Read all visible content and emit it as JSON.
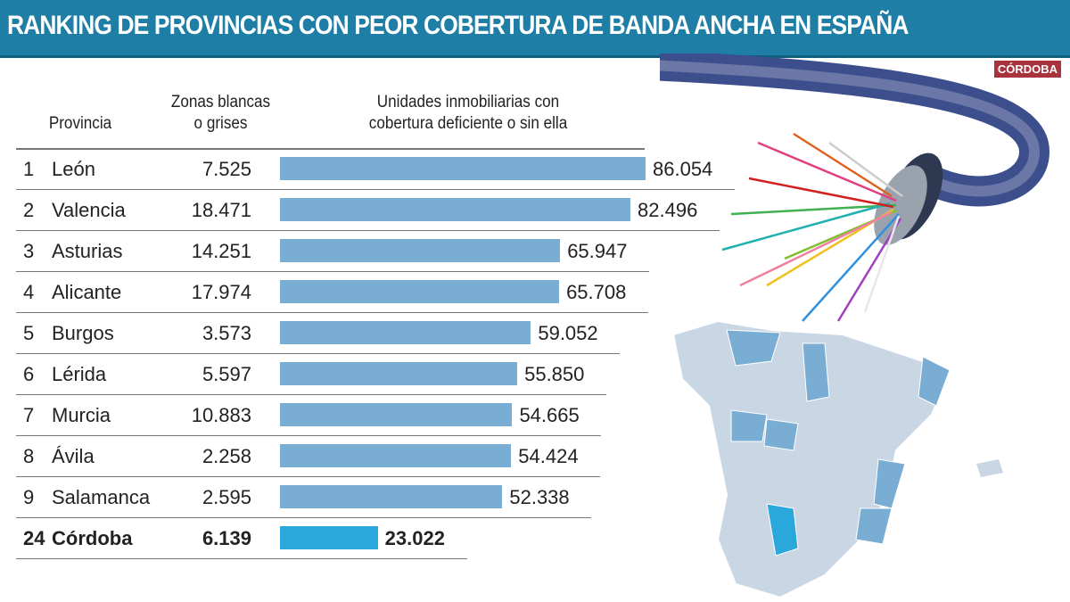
{
  "title": "RANKING DE PROVINCIAS CON PEOR COBERTURA DE BANDA ANCHA EN ESPAÑA",
  "logo": "CÓRDOBA",
  "colors": {
    "title_bar": "#1e7ea6",
    "bar": "#7aadd4",
    "highlight_bar": "#2aa8dc",
    "logo": "#a8333d"
  },
  "chart_data": {
    "type": "bar",
    "orientation": "horizontal",
    "columns": [
      "Provincia",
      "Zonas blancas o grises",
      "Unidades inmobiliarias con cobertura deficiente o sin ella"
    ],
    "headers": {
      "provincia": "Provincia",
      "zonas": "Zonas blancas\no grises",
      "unidades": "Unidades inmobiliarias con\ncobertura deficiente o sin ella"
    },
    "rows": [
      {
        "rank": "1",
        "provincia": "León",
        "zonas": "7.525",
        "unidades": 86054,
        "label": "86.054"
      },
      {
        "rank": "2",
        "provincia": "Valencia",
        "zonas": "18.471",
        "unidades": 82496,
        "label": "82.496"
      },
      {
        "rank": "3",
        "provincia": "Asturias",
        "zonas": "14.251",
        "unidades": 65947,
        "label": "65.947"
      },
      {
        "rank": "4",
        "provincia": "Alicante",
        "zonas": "17.974",
        "unidades": 65708,
        "label": "65.708"
      },
      {
        "rank": "5",
        "provincia": "Burgos",
        "zonas": "3.573",
        "unidades": 59052,
        "label": "59.052"
      },
      {
        "rank": "6",
        "provincia": "Lérida",
        "zonas": "5.597",
        "unidades": 55850,
        "label": "55.850"
      },
      {
        "rank": "7",
        "provincia": "Murcia",
        "zonas": "10.883",
        "unidades": 54665,
        "label": "54.665"
      },
      {
        "rank": "8",
        "provincia": "Ávila",
        "zonas": "2.258",
        "unidades": 54424,
        "label": "54.424"
      },
      {
        "rank": "9",
        "provincia": "Salamanca",
        "zonas": "2.595",
        "unidades": 52338,
        "label": "52.338"
      },
      {
        "rank": "24",
        "provincia": "Córdoba",
        "zonas": "6.139",
        "unidades": 23022,
        "label": "23.022",
        "highlight": true
      }
    ]
  }
}
